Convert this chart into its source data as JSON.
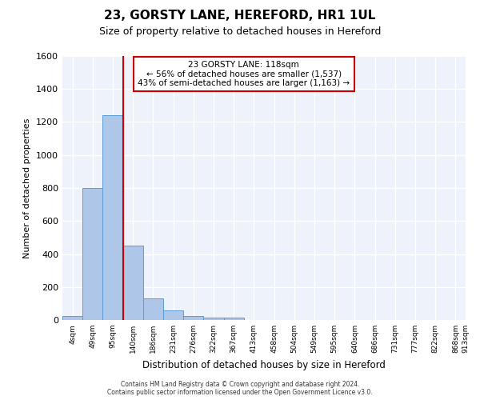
{
  "title": "23, GORSTY LANE, HEREFORD, HR1 1UL",
  "subtitle": "Size of property relative to detached houses in Hereford",
  "xlabel": "Distribution of detached houses by size in Hereford",
  "ylabel": "Number of detached properties",
  "bar_values": [
    25,
    800,
    1240,
    450,
    130,
    60,
    25,
    15,
    15,
    0,
    0,
    0,
    0,
    0,
    0,
    0,
    0,
    0,
    0,
    0
  ],
  "bin_labels": [
    "4sqm",
    "49sqm",
    "95sqm",
    "140sqm",
    "186sqm",
    "231sqm",
    "276sqm",
    "322sqm",
    "367sqm",
    "413sqm",
    "458sqm",
    "504sqm",
    "549sqm",
    "595sqm",
    "640sqm",
    "686sqm",
    "731sqm",
    "777sqm",
    "822sqm",
    "868sqm"
  ],
  "extra_label": "913sqm",
  "bar_color": "#aec6e8",
  "bar_edge_color": "#5b9bd5",
  "background_color": "#eef3fb",
  "grid_color": "#ffffff",
  "red_line_x": 2.5,
  "annotation_text": "23 GORSTY LANE: 118sqm\n← 56% of detached houses are smaller (1,537)\n43% of semi-detached houses are larger (1,163) →",
  "annotation_box_color": "#ffffff",
  "annotation_box_edge": "#cc0000",
  "ylim": [
    0,
    1600
  ],
  "yticks": [
    0,
    200,
    400,
    600,
    800,
    1000,
    1200,
    1400,
    1600
  ],
  "footer_line1": "Contains HM Land Registry data © Crown copyright and database right 2024.",
  "footer_line2": "Contains public sector information licensed under the Open Government Licence v3.0."
}
